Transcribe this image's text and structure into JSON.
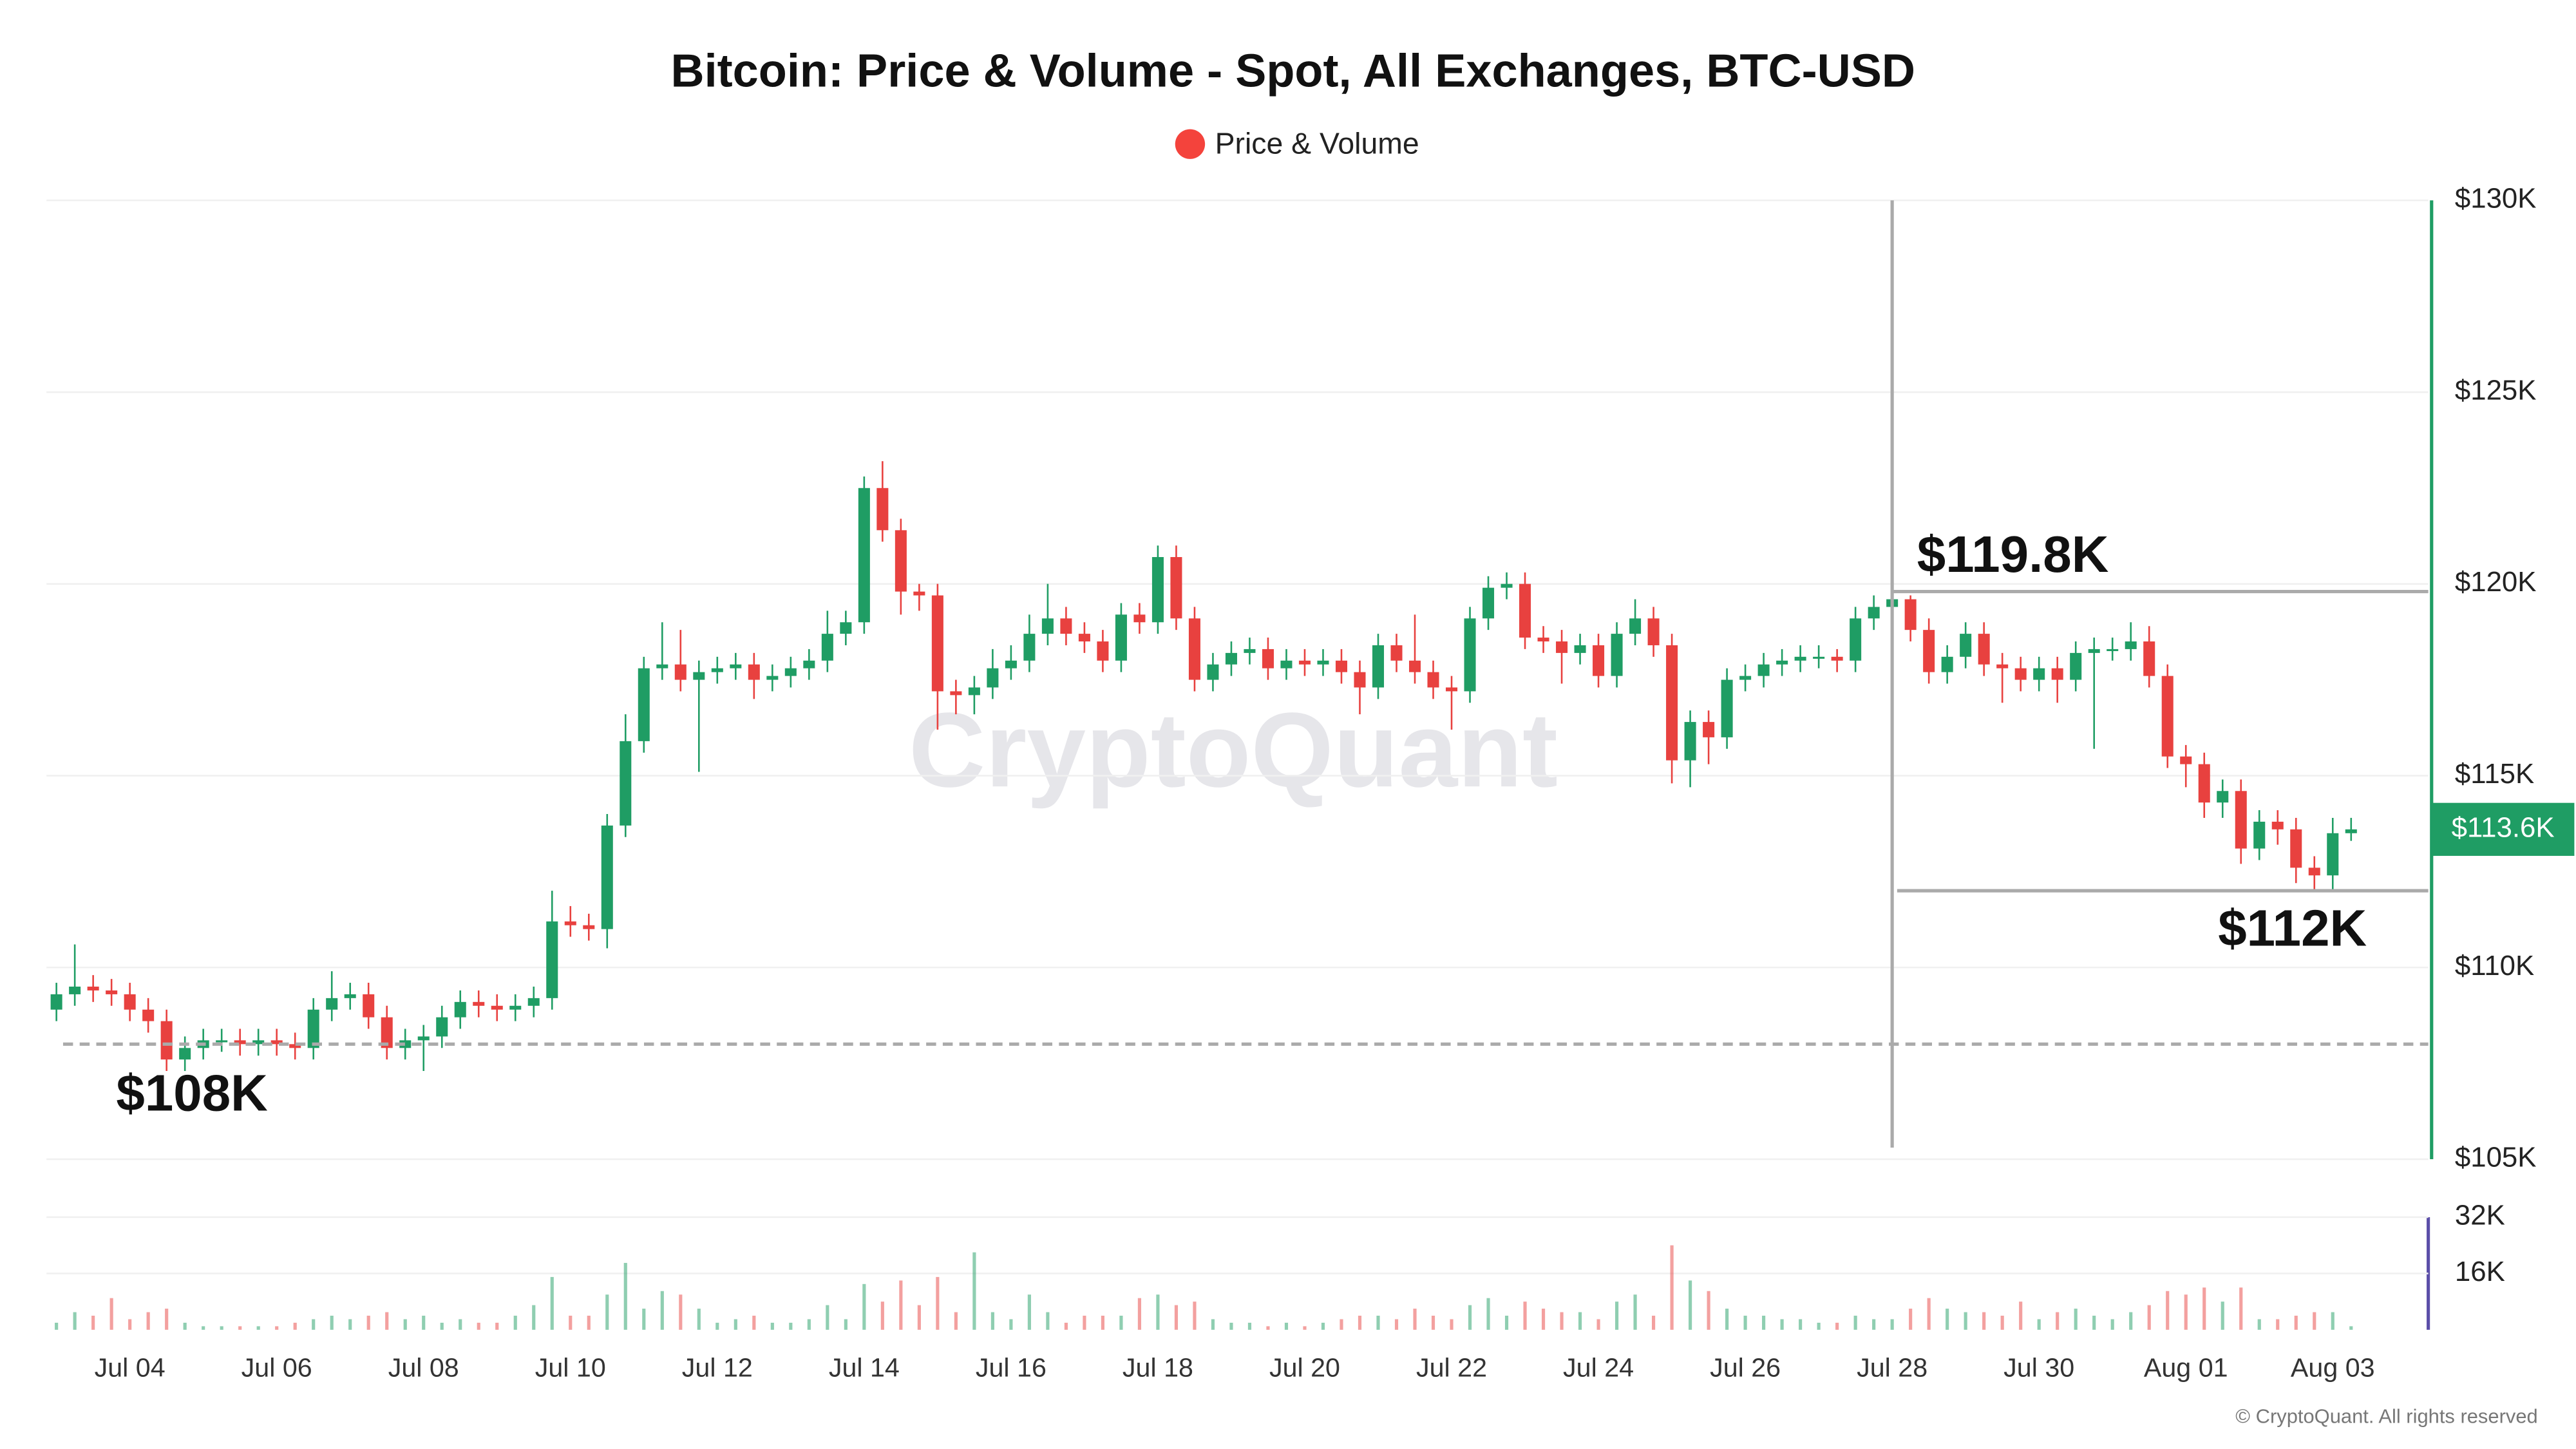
{
  "chart_data": {
    "type": "candlestick",
    "title": "Bitcoin: Price & Volume - Spot, All Exchanges, BTC-USD",
    "legend": [
      {
        "name": "Price & Volume",
        "color": "#f4433c"
      }
    ],
    "up_color": "#1f9d64",
    "down_color": "#e8413f",
    "watermark": "CryptoQuant",
    "copyright": "© CryptoQuant. All rights reserved",
    "last_price_label": "$113.6K",
    "categories": [
      null,
      null,
      null,
      null,
      "Jul 04",
      null,
      null,
      null,
      null,
      null,
      null,
      null,
      "Jul 06",
      null,
      null,
      null,
      null,
      null,
      null,
      null,
      "Jul 08",
      null,
      null,
      null,
      null,
      null,
      null,
      null,
      "Jul 10",
      null,
      null,
      null,
      null,
      null,
      null,
      null,
      "Jul 12",
      null,
      null,
      null,
      null,
      null,
      null,
      null,
      "Jul 14",
      null,
      null,
      null,
      null,
      null,
      null,
      null,
      "Jul 16",
      null,
      null,
      null,
      null,
      null,
      null,
      null,
      "Jul 18",
      null,
      null,
      null,
      null,
      null,
      null,
      null,
      "Jul 20",
      null,
      null,
      null,
      null,
      null,
      null,
      null,
      "Jul 22",
      null,
      null,
      null,
      null,
      null,
      null,
      null,
      "Jul 24",
      null,
      null,
      null,
      null,
      null,
      null,
      null,
      "Jul 26",
      null,
      null,
      null,
      null,
      null,
      null,
      null,
      "Jul 28",
      null,
      null,
      null,
      null,
      null,
      null,
      null,
      "Jul 30",
      null,
      null,
      null,
      null,
      null,
      null,
      null,
      "Aug 01",
      null,
      null,
      null,
      null,
      null,
      null,
      null,
      "Aug 03",
      null
    ],
    "open": [
      108900,
      109300,
      109500,
      109400,
      109300,
      108900,
      108600,
      107600,
      107900,
      108100,
      108100,
      108000,
      108100,
      108000,
      107900,
      108900,
      109200,
      109300,
      108700,
      107900,
      108100,
      108200,
      108700,
      109100,
      109000,
      108900,
      109000,
      109200,
      111200,
      111100,
      111000,
      113700,
      115900,
      117800,
      117900,
      117500,
      117700,
      117800,
      117900,
      117500,
      117600,
      117800,
      118000,
      118700,
      119000,
      122500,
      121400,
      119800,
      119700,
      117200,
      117100,
      117300,
      117800,
      118000,
      118700,
      119100,
      118700,
      118500,
      118000,
      119200,
      119000,
      120700,
      119100,
      117500,
      117900,
      118200,
      118300,
      117800,
      118000,
      117900,
      118000,
      117700,
      117300,
      118400,
      118000,
      117700,
      117300,
      117200,
      119100,
      119900,
      120000,
      118600,
      118500,
      118200,
      118400,
      117600,
      118700,
      119100,
      118400,
      115400,
      116400,
      116000,
      117500,
      117600,
      117900,
      118000,
      118100,
      118100,
      118000,
      119100,
      119400,
      119600,
      118800,
      117700,
      118100,
      118700,
      117900,
      117800,
      117500,
      117800,
      117500,
      118200,
      118300,
      118300,
      118500,
      117600,
      115500,
      115300,
      114300,
      114600,
      113100,
      113800,
      113600,
      112600,
      112400,
      113500
    ],
    "high": [
      109600,
      110600,
      109800,
      109700,
      109600,
      109200,
      108900,
      108200,
      108400,
      108400,
      108400,
      108400,
      108400,
      108300,
      109200,
      109900,
      109600,
      109600,
      109000,
      108400,
      108500,
      109000,
      109400,
      109400,
      109300,
      109300,
      109500,
      112000,
      111600,
      111400,
      114000,
      116600,
      118100,
      119000,
      118800,
      118000,
      118100,
      118200,
      118200,
      117900,
      118100,
      118300,
      119300,
      119300,
      122800,
      123200,
      121700,
      120000,
      120000,
      117500,
      117600,
      118300,
      118400,
      119200,
      120000,
      119400,
      119000,
      118800,
      119500,
      119500,
      121000,
      121000,
      119400,
      118200,
      118500,
      118600,
      118600,
      118300,
      118300,
      118300,
      118300,
      118000,
      118700,
      118700,
      119200,
      118000,
      117600,
      119400,
      120200,
      120300,
      120300,
      118900,
      118800,
      118700,
      118700,
      119000,
      119600,
      119400,
      118700,
      116700,
      116700,
      117800,
      117900,
      118200,
      118300,
      118400,
      118400,
      118300,
      119400,
      119700,
      119800,
      119700,
      119100,
      118400,
      119000,
      119000,
      118200,
      118100,
      118100,
      118100,
      118500,
      118600,
      118600,
      119000,
      118900,
      117900,
      115800,
      115600,
      114900,
      114900,
      114100,
      114100,
      113900,
      112900,
      113900,
      113900
    ],
    "low": [
      108600,
      109000,
      109100,
      109000,
      108600,
      108300,
      107300,
      107300,
      107600,
      107800,
      107700,
      107700,
      107700,
      107600,
      107600,
      108600,
      108900,
      108400,
      107600,
      107600,
      107300,
      107900,
      108400,
      108700,
      108600,
      108600,
      108700,
      108900,
      110800,
      110700,
      110500,
      113400,
      115600,
      117500,
      117200,
      115100,
      117400,
      117500,
      117000,
      117200,
      117300,
      117500,
      117700,
      118400,
      118700,
      121100,
      119200,
      119300,
      116200,
      116600,
      116600,
      117000,
      117500,
      117700,
      118400,
      118400,
      118200,
      117700,
      117700,
      118700,
      118700,
      118800,
      117200,
      117200,
      117600,
      117900,
      117500,
      117500,
      117600,
      117600,
      117400,
      116600,
      117000,
      117700,
      117400,
      117000,
      116200,
      116900,
      118800,
      119600,
      118300,
      118200,
      117400,
      117900,
      117300,
      117300,
      118400,
      118100,
      114800,
      114700,
      115300,
      115700,
      117200,
      117300,
      117600,
      117700,
      117800,
      117700,
      117700,
      118800,
      119100,
      118500,
      117400,
      117400,
      117800,
      117600,
      116900,
      117200,
      117200,
      116900,
      117200,
      115700,
      118000,
      118000,
      117300,
      115200,
      114700,
      113900,
      113900,
      112700,
      112800,
      113200,
      112200,
      112000,
      112000,
      113300
    ],
    "close": [
      109300,
      109500,
      109400,
      109300,
      108900,
      108600,
      107600,
      107900,
      108100,
      108100,
      108000,
      108100,
      108000,
      107900,
      108900,
      109200,
      109300,
      108700,
      107900,
      108100,
      108200,
      108700,
      109100,
      109000,
      108900,
      109000,
      109200,
      111200,
      111100,
      111000,
      113700,
      115900,
      117800,
      117900,
      117500,
      117700,
      117800,
      117900,
      117500,
      117600,
      117800,
      118000,
      118700,
      119000,
      122500,
      121400,
      119800,
      119700,
      117200,
      117100,
      117300,
      117800,
      118000,
      118700,
      119100,
      118700,
      118500,
      118000,
      119200,
      119000,
      120700,
      119100,
      117500,
      117900,
      118200,
      118300,
      117800,
      118000,
      117900,
      118000,
      117700,
      117300,
      118400,
      118000,
      117700,
      117300,
      117200,
      119100,
      119900,
      120000,
      118600,
      118500,
      118200,
      118400,
      117600,
      118700,
      119100,
      118400,
      115400,
      116400,
      116000,
      117500,
      117600,
      117900,
      118000,
      118100,
      118100,
      118000,
      119100,
      119400,
      119600,
      118800,
      117700,
      118100,
      118700,
      117900,
      117800,
      117500,
      117800,
      117500,
      118200,
      118300,
      118300,
      118500,
      117600,
      115500,
      115300,
      114300,
      114600,
      113100,
      113800,
      113600,
      112600,
      112400,
      113500,
      113600
    ],
    "volume": [
      2000,
      5000,
      4000,
      9000,
      3000,
      5000,
      6000,
      2000,
      1000,
      1000,
      1000,
      1000,
      1000,
      2000,
      3000,
      4000,
      3000,
      4000,
      5000,
      3000,
      4000,
      2000,
      3000,
      2000,
      2000,
      4000,
      7000,
      15000,
      4000,
      4000,
      10000,
      19000,
      6000,
      11000,
      10000,
      6000,
      2000,
      3000,
      4000,
      2000,
      2000,
      3000,
      7000,
      3000,
      13000,
      8000,
      14000,
      7000,
      15000,
      5000,
      22000,
      5000,
      3000,
      10000,
      5000,
      2000,
      4000,
      4000,
      4000,
      9000,
      10000,
      7000,
      8000,
      3000,
      2000,
      2000,
      1000,
      2000,
      1000,
      2000,
      3000,
      4000,
      4000,
      3000,
      6000,
      4000,
      3000,
      7000,
      9000,
      4000,
      8000,
      6000,
      5000,
      5000,
      3000,
      8000,
      10000,
      4000,
      24000,
      14000,
      11000,
      6000,
      4000,
      4000,
      3000,
      3000,
      2000,
      2000,
      4000,
      3000,
      3000,
      6000,
      9000,
      6000,
      5000,
      5000,
      4000,
      8000,
      3000,
      5000,
      6000,
      4000,
      3000,
      5000,
      7000,
      11000,
      10000,
      12000,
      8000,
      12000,
      3000,
      3000,
      4000,
      5000,
      5000,
      1000
    ],
    "ylim": [
      105000,
      130000
    ],
    "yticks": [
      {
        "value": 105000,
        "label": "$105K"
      },
      {
        "value": 110000,
        "label": "$110K"
      },
      {
        "value": 115000,
        "label": "$115K"
      },
      {
        "value": 120000,
        "label": "$120K"
      },
      {
        "value": 125000,
        "label": "$125K"
      },
      {
        "value": 130000,
        "label": "$130K"
      }
    ],
    "y2lim": [
      0,
      32000
    ],
    "y2ticks": [
      {
        "value": 16000,
        "label": "16K"
      },
      {
        "value": 32000,
        "label": "32K"
      }
    ],
    "grid": true,
    "annotations": [
      {
        "label": "$119.8K",
        "value": 119800
      },
      {
        "label": "$112K",
        "value": 112000
      },
      {
        "label": "$108K",
        "value": 108000
      }
    ]
  }
}
